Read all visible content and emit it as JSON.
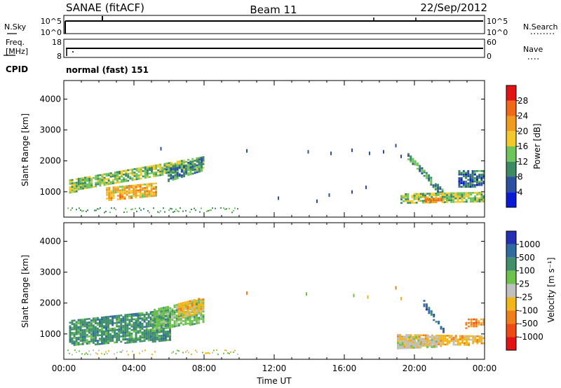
{
  "header": {
    "title": "SANAE (fitACF)",
    "beam": "Beam 11",
    "date": "22/Sep/2012"
  },
  "strip_nsky": {
    "left_label": "N.Sky",
    "left_ticks": [
      "10^5",
      "10^0"
    ],
    "right_label": "N.Search",
    "right_ticks": [
      "10^5",
      "10^0"
    ]
  },
  "strip_freq": {
    "left_label_1": "Freq.",
    "left_label_2": "[MHz]",
    "left_ticks": [
      "18",
      "8"
    ],
    "right_label": "Nave",
    "right_ticks": [
      "60",
      "0"
    ]
  },
  "strip_cpid": {
    "label": "CPID",
    "value": "normal (fast) 151"
  },
  "colors": {
    "power": [
      "#0a1bd6",
      "#2b50a2",
      "#3d8a62",
      "#6fc45a",
      "#f2c82a",
      "#f09a1e",
      "#f06a17",
      "#e21313"
    ],
    "velocity": [
      "#2430b4",
      "#2f6aa0",
      "#3f8f6a",
      "#6cc24a",
      "#c0c0c0",
      "#f2b51a",
      "#f07f1a",
      "#f04a14",
      "#e21313"
    ]
  },
  "chart_data": [
    {
      "type": "heatmap",
      "name": "power",
      "ylabel": "Slant Range [km]",
      "y_ticks": [
        "1000",
        "2000",
        "3000",
        "4000"
      ],
      "ylim": [
        180,
        4600
      ],
      "xlim": [
        0,
        24
      ],
      "colorbar": {
        "label": "Power [dB]",
        "ticks": [
          "4",
          "8",
          "12",
          "16",
          "20",
          "24",
          "28"
        ],
        "range": [
          0,
          32
        ]
      },
      "regions": [
        {
          "x": [
            0.3,
            7.9
          ],
          "y_start": [
            1000,
            1800
          ],
          "y_end": [
            1400,
            2150
          ],
          "value": 14
        },
        {
          "x": [
            2.4,
            5.2
          ],
          "y_start": [
            750,
            900
          ],
          "y_end": [
            1150,
            1300
          ],
          "value": 20
        },
        {
          "x": [
            5.8,
            7.8
          ],
          "y_start": [
            1300,
            1700
          ],
          "y_end": [
            1750,
            2100
          ],
          "value": 10
        },
        {
          "x": [
            19.6,
            21.8
          ],
          "y_start": [
            2050,
            700
          ],
          "y_end": [
            2250,
            950
          ],
          "value": 10
        },
        {
          "x": [
            19.2,
            23.9
          ],
          "y_start": [
            650,
            700
          ],
          "y_end": [
            950,
            1000
          ],
          "value": 15
        },
        {
          "x": [
            20.6,
            21.6
          ],
          "y_start": [
            680,
            700
          ],
          "y_end": [
            820,
            800
          ],
          "value": 24
        },
        {
          "x": [
            22.5,
            23.9
          ],
          "y_start": [
            1150,
            1200
          ],
          "y_end": [
            1700,
            1700
          ],
          "value": 8
        }
      ],
      "scatter": [
        {
          "x": 10.4,
          "y": 2380,
          "value": 4
        },
        {
          "x": 13.9,
          "y": 2350,
          "value": 4
        },
        {
          "x": 15.2,
          "y": 2300,
          "value": 4
        },
        {
          "x": 16.4,
          "y": 2400,
          "value": 4
        },
        {
          "x": 17.4,
          "y": 2300,
          "value": 4
        },
        {
          "x": 18.2,
          "y": 2350,
          "value": 4
        },
        {
          "x": 12.2,
          "y": 850,
          "value": 4
        },
        {
          "x": 14.4,
          "y": 750,
          "value": 4
        },
        {
          "x": 15.1,
          "y": 950,
          "value": 4
        },
        {
          "x": 16.4,
          "y": 1050,
          "value": 4
        },
        {
          "x": 17.2,
          "y": 1200,
          "value": 4
        },
        {
          "x": 18.9,
          "y": 2550,
          "value": 4
        },
        {
          "x": 19.2,
          "y": 2200,
          "value": 4
        },
        {
          "x": 5.5,
          "y": 2450,
          "value": 4
        }
      ]
    },
    {
      "type": "heatmap",
      "name": "velocity",
      "ylabel": "Slant Range [km]",
      "xlabel": "Time UT",
      "y_ticks": [
        "1000",
        "2000",
        "3000",
        "4000"
      ],
      "x_ticks": [
        "00:00",
        "04:00",
        "08:00",
        "12:00",
        "16:00",
        "20:00",
        "00:00"
      ],
      "ylim": [
        180,
        4600
      ],
      "xlim": [
        0,
        24
      ],
      "colorbar": {
        "label": "Velocity [m s⁻¹]",
        "ticks": [
          "1000",
          "500",
          "100",
          "25",
          "-25",
          "-100",
          "-500",
          "-1000"
        ]
      },
      "regions": [
        {
          "x": [
            0.3,
            6.0
          ],
          "y_start": [
            650,
            800
          ],
          "y_end": [
            1450,
            1800
          ],
          "value": "100"
        },
        {
          "x": [
            5.0,
            7.9
          ],
          "y_start": [
            1100,
            1400
          ],
          "y_end": [
            1800,
            2150
          ],
          "value": "25"
        },
        {
          "x": [
            6.5,
            7.9
          ],
          "y_start": [
            1500,
            1700
          ],
          "y_end": [
            2000,
            2200
          ],
          "value": "-100"
        },
        {
          "x": [
            19.0,
            23.9
          ],
          "y_start": [
            550,
            700
          ],
          "y_end": [
            1000,
            950
          ],
          "value": "-100"
        },
        {
          "x": [
            19.0,
            21.2
          ],
          "y_start": [
            550,
            600
          ],
          "y_end": [
            900,
            950
          ],
          "value": "-25"
        },
        {
          "x": [
            20.5,
            21.6
          ],
          "y_start": [
            1900,
            1050
          ],
          "y_end": [
            2100,
            1200
          ],
          "value": "500"
        },
        {
          "x": [
            22.9,
            23.9
          ],
          "y_start": [
            1200,
            1300
          ],
          "y_end": [
            1500,
            1500
          ],
          "value": "-500"
        }
      ],
      "scatter": [
        {
          "x": 10.4,
          "y": 2380,
          "value": "-500"
        },
        {
          "x": 13.8,
          "y": 2350,
          "value": "25"
        },
        {
          "x": 16.5,
          "y": 2300,
          "value": "25"
        },
        {
          "x": 17.3,
          "y": 2250,
          "value": "-100"
        },
        {
          "x": 18.9,
          "y": 2550,
          "value": "-500"
        },
        {
          "x": 19.2,
          "y": 2200,
          "value": "-100"
        }
      ]
    }
  ]
}
